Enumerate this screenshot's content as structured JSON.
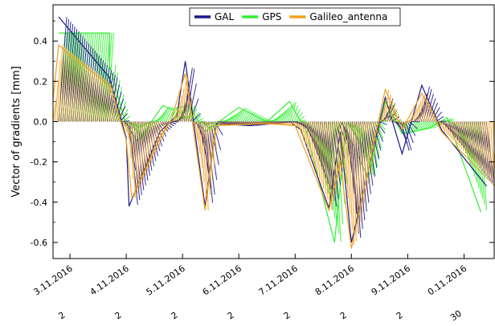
{
  "chart_data": {
    "type": "line",
    "ylabel": "Vector of gradients [mm]",
    "ylim": [
      -0.68,
      0.58
    ],
    "yticks": [
      0.4,
      0.2,
      0.0,
      -0.2,
      -0.4,
      -0.6
    ],
    "ytick_labels": [
      "0.4",
      "0.2",
      "0.0",
      "-0.2",
      "-0.4",
      "-0.6"
    ],
    "x_range_days": [
      0.0,
      7.85
    ],
    "xticks": [
      {
        "day": 0.3,
        "label": "3.11.2016"
      },
      {
        "day": 1.3,
        "label": "4.11.2016"
      },
      {
        "day": 2.3,
        "label": "5.11.2016"
      },
      {
        "day": 3.3,
        "label": "6.11.2016"
      },
      {
        "day": 4.3,
        "label": "7.11.2016"
      },
      {
        "day": 5.3,
        "label": "8.11.2016"
      },
      {
        "day": 6.3,
        "label": "9.11.2016"
      },
      {
        "day": 7.3,
        "label": "0.11.2016"
      }
    ],
    "xtick_sublabels": [
      "2",
      "2",
      "2",
      "2",
      "2",
      "2",
      "2",
      "30"
    ],
    "grid": false,
    "legend_position": "top-center",
    "series": [
      {
        "name": "GAL",
        "color": "#1a1a8c",
        "points": [
          [
            0.1,
            0.52
          ],
          [
            1.0,
            0.22
          ],
          [
            1.3,
            -0.08
          ],
          [
            1.35,
            -0.42
          ],
          [
            1.9,
            -0.05
          ],
          [
            2.2,
            0.03
          ],
          [
            2.35,
            0.3
          ],
          [
            2.7,
            -0.42
          ],
          [
            2.9,
            -0.01
          ],
          [
            3.5,
            -0.02
          ],
          [
            4.2,
            0.0
          ],
          [
            4.4,
            -0.04
          ],
          [
            4.9,
            -0.43
          ],
          [
            5.1,
            -0.05
          ],
          [
            5.3,
            -0.6
          ],
          [
            5.9,
            0.12
          ],
          [
            6.2,
            -0.16
          ],
          [
            6.55,
            0.18
          ],
          [
            6.9,
            -0.04
          ],
          [
            7.7,
            -0.32
          ]
        ]
      },
      {
        "name": "GPS",
        "color": "#33ee33",
        "points": [
          [
            0.1,
            0.44
          ],
          [
            1.0,
            0.44
          ],
          [
            1.0,
            0.28
          ],
          [
            1.3,
            -0.02
          ],
          [
            1.5,
            -0.1
          ],
          [
            1.95,
            0.08
          ],
          [
            2.1,
            0.06
          ],
          [
            2.4,
            0.08
          ],
          [
            2.7,
            -0.05
          ],
          [
            3.3,
            0.07
          ],
          [
            3.8,
            0.0
          ],
          [
            4.2,
            0.1
          ],
          [
            4.5,
            -0.05
          ],
          [
            5.0,
            -0.6
          ],
          [
            5.2,
            -0.04
          ],
          [
            5.6,
            -0.28
          ],
          [
            5.9,
            0.1
          ],
          [
            6.2,
            -0.06
          ],
          [
            6.7,
            -0.03
          ],
          [
            7.0,
            0.02
          ],
          [
            7.6,
            -0.45
          ]
        ]
      },
      {
        "name": "Galileo_antenna",
        "color": "#f0a020",
        "points": [
          [
            0.0,
            0.11
          ],
          [
            0.1,
            0.38
          ],
          [
            1.0,
            0.18
          ],
          [
            1.3,
            -0.09
          ],
          [
            1.4,
            -0.38
          ],
          [
            1.9,
            -0.08
          ],
          [
            2.1,
            0.01
          ],
          [
            2.35,
            0.24
          ],
          [
            2.7,
            -0.44
          ],
          [
            2.9,
            -0.02
          ],
          [
            3.8,
            -0.01
          ],
          [
            4.3,
            -0.02
          ],
          [
            4.9,
            -0.44
          ],
          [
            5.1,
            -0.2
          ],
          [
            5.3,
            -0.63
          ],
          [
            5.9,
            0.16
          ],
          [
            6.2,
            -0.04
          ],
          [
            6.55,
            0.14
          ],
          [
            6.9,
            -0.05
          ],
          [
            7.85,
            -0.32
          ]
        ]
      }
    ]
  }
}
